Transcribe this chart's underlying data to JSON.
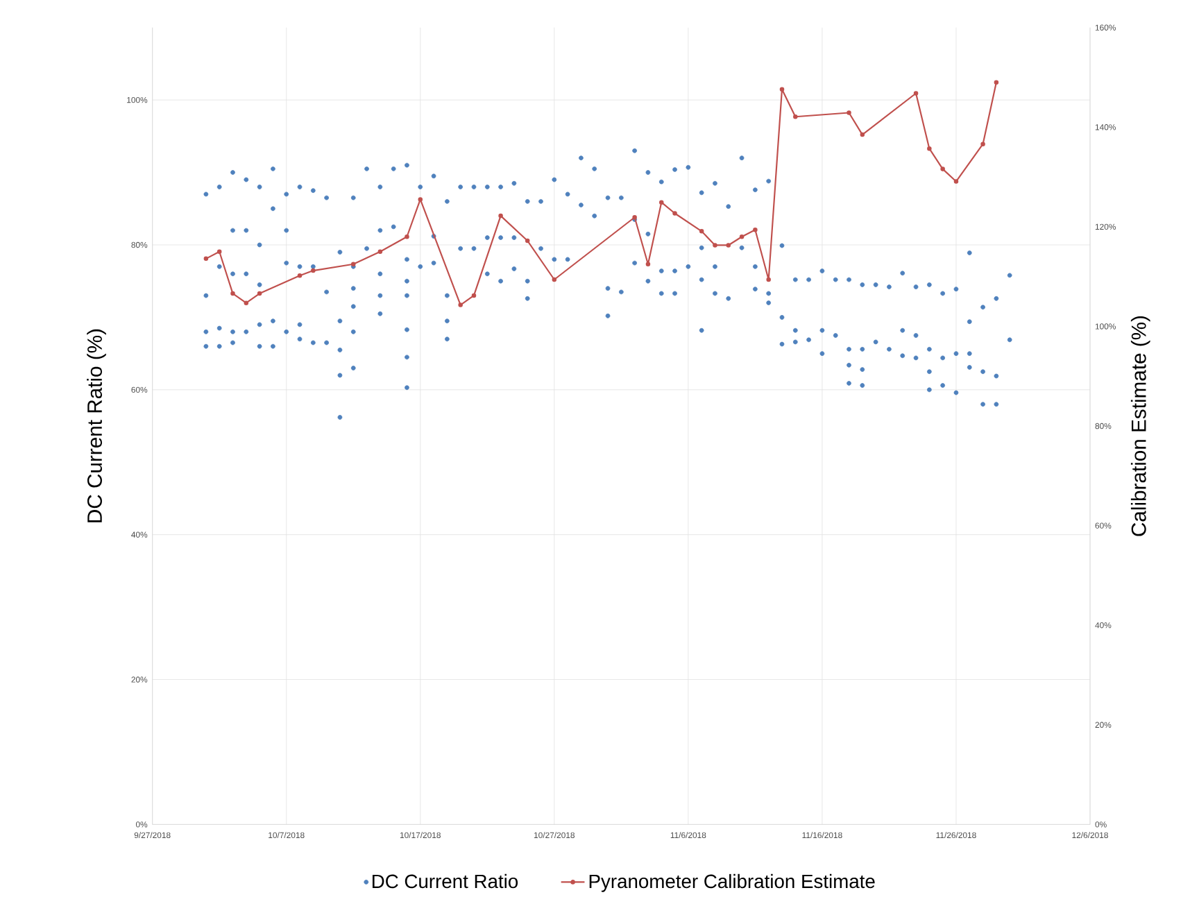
{
  "chart_data": {
    "type": "scatter",
    "ylabel": "DC Current Ratio (%)",
    "y2label": "Calibration Estimate (%)",
    "xlim": [
      "2018-09-27",
      "2018-12-06"
    ],
    "xticks": [
      {
        "value": "2018-09-27",
        "label": "9/27/2018"
      },
      {
        "value": "2018-10-07",
        "label": "10/7/2018"
      },
      {
        "value": "2018-10-17",
        "label": "10/17/2018"
      },
      {
        "value": "2018-10-27",
        "label": "10/27/2018"
      },
      {
        "value": "2018-11-06",
        "label": "11/6/2018"
      },
      {
        "value": "2018-11-16",
        "label": "11/16/2018"
      },
      {
        "value": "2018-11-26",
        "label": "11/26/2018"
      },
      {
        "value": "2018-12-06",
        "label": "12/6/2018"
      }
    ],
    "ylim": [
      0,
      110
    ],
    "yticks": [
      {
        "value": 0,
        "label": "0%"
      },
      {
        "value": 20,
        "label": "20%"
      },
      {
        "value": 40,
        "label": "40%"
      },
      {
        "value": 60,
        "label": "60%"
      },
      {
        "value": 80,
        "label": "80%"
      },
      {
        "value": 100,
        "label": "100%"
      }
    ],
    "y2lim": [
      0,
      160
    ],
    "y2ticks": [
      {
        "value": 0,
        "label": "0%"
      },
      {
        "value": 20,
        "label": "20%"
      },
      {
        "value": 40,
        "label": "40%"
      },
      {
        "value": 60,
        "label": "60%"
      },
      {
        "value": 80,
        "label": "80%"
      },
      {
        "value": 100,
        "label": "100%"
      },
      {
        "value": 120,
        "label": "120%"
      },
      {
        "value": 140,
        "label": "140%"
      },
      {
        "value": 160,
        "label": "160%"
      }
    ],
    "grid": true,
    "legend": "bottom",
    "series": [
      {
        "name": "DC Current Ratio",
        "marker": "circle",
        "color": "#4f81bd",
        "x": [
          "2018-10-01",
          "2018-10-01",
          "2018-10-01",
          "2018-10-01",
          "2018-10-02",
          "2018-10-02",
          "2018-10-02",
          "2018-10-02",
          "2018-10-03",
          "2018-10-03",
          "2018-10-03",
          "2018-10-03",
          "2018-10-03",
          "2018-10-04",
          "2018-10-04",
          "2018-10-04",
          "2018-10-04",
          "2018-10-05",
          "2018-10-05",
          "2018-10-05",
          "2018-10-05",
          "2018-10-05",
          "2018-10-06",
          "2018-10-06",
          "2018-10-06",
          "2018-10-06",
          "2018-10-07",
          "2018-10-07",
          "2018-10-07",
          "2018-10-07",
          "2018-10-08",
          "2018-10-08",
          "2018-10-08",
          "2018-10-08",
          "2018-10-09",
          "2018-10-09",
          "2018-10-09",
          "2018-10-10",
          "2018-10-10",
          "2018-10-10",
          "2018-10-11",
          "2018-10-11",
          "2018-10-11",
          "2018-10-11",
          "2018-10-11",
          "2018-10-12",
          "2018-10-12",
          "2018-10-12",
          "2018-10-12",
          "2018-10-12",
          "2018-10-12",
          "2018-10-13",
          "2018-10-13",
          "2018-10-14",
          "2018-10-14",
          "2018-10-14",
          "2018-10-14",
          "2018-10-14",
          "2018-10-15",
          "2018-10-15",
          "2018-10-16",
          "2018-10-16",
          "2018-10-16",
          "2018-10-16",
          "2018-10-16",
          "2018-10-16",
          "2018-10-16",
          "2018-10-17",
          "2018-10-17",
          "2018-10-18",
          "2018-10-18",
          "2018-10-18",
          "2018-10-19",
          "2018-10-19",
          "2018-10-19",
          "2018-10-19",
          "2018-10-20",
          "2018-10-20",
          "2018-10-21",
          "2018-10-21",
          "2018-10-22",
          "2018-10-22",
          "2018-10-22",
          "2018-10-23",
          "2018-10-23",
          "2018-10-23",
          "2018-10-24",
          "2018-10-24",
          "2018-10-24",
          "2018-10-25",
          "2018-10-25",
          "2018-10-25",
          "2018-10-26",
          "2018-10-26",
          "2018-10-27",
          "2018-10-27",
          "2018-10-28",
          "2018-10-28",
          "2018-10-29",
          "2018-10-29",
          "2018-10-30",
          "2018-10-30",
          "2018-10-31",
          "2018-10-31",
          "2018-10-31",
          "2018-11-01",
          "2018-11-01",
          "2018-11-02",
          "2018-11-02",
          "2018-11-02",
          "2018-11-03",
          "2018-11-03",
          "2018-11-03",
          "2018-11-04",
          "2018-11-04",
          "2018-11-04",
          "2018-11-05",
          "2018-11-05",
          "2018-11-05",
          "2018-11-06",
          "2018-11-06",
          "2018-11-07",
          "2018-11-07",
          "2018-11-07",
          "2018-11-07",
          "2018-11-08",
          "2018-11-08",
          "2018-11-08",
          "2018-11-09",
          "2018-11-09",
          "2018-11-10",
          "2018-11-10",
          "2018-11-11",
          "2018-11-11",
          "2018-11-11",
          "2018-11-12",
          "2018-11-12",
          "2018-11-12",
          "2018-11-13",
          "2018-11-13",
          "2018-11-13",
          "2018-11-14",
          "2018-11-14",
          "2018-11-14",
          "2018-11-15",
          "2018-11-15",
          "2018-11-16",
          "2018-11-16",
          "2018-11-16",
          "2018-11-17",
          "2018-11-17",
          "2018-11-18",
          "2018-11-18",
          "2018-11-18",
          "2018-11-18",
          "2018-11-19",
          "2018-11-19",
          "2018-11-19",
          "2018-11-19",
          "2018-11-20",
          "2018-11-20",
          "2018-11-21",
          "2018-11-21",
          "2018-11-22",
          "2018-11-22",
          "2018-11-22",
          "2018-11-23",
          "2018-11-23",
          "2018-11-23",
          "2018-11-24",
          "2018-11-24",
          "2018-11-24",
          "2018-11-24",
          "2018-11-25",
          "2018-11-25",
          "2018-11-25",
          "2018-11-26",
          "2018-11-26",
          "2018-11-26",
          "2018-11-27",
          "2018-11-27",
          "2018-11-27",
          "2018-11-27",
          "2018-11-28",
          "2018-11-28",
          "2018-11-28",
          "2018-11-29",
          "2018-11-29",
          "2018-11-29",
          "2018-11-30",
          "2018-11-30"
        ],
        "values": [
          87,
          73,
          68,
          66,
          88,
          77,
          68.5,
          66,
          90,
          82,
          76,
          68,
          66.5,
          89,
          82,
          76,
          68,
          88,
          80,
          74.5,
          69,
          66,
          90.5,
          85,
          69.5,
          66,
          87,
          82,
          77.5,
          68,
          88,
          77,
          69,
          67,
          87.5,
          77,
          66.5,
          86.5,
          73.5,
          66.5,
          79,
          69.5,
          65.5,
          62,
          56.2,
          86.5,
          77,
          74,
          71.5,
          68,
          63,
          90.5,
          79.5,
          88,
          82,
          76,
          73,
          70.5,
          90.5,
          82.5,
          91,
          78,
          75,
          73,
          68.3,
          64.5,
          60.3,
          88,
          77,
          89.5,
          81.2,
          77.5,
          86,
          73,
          69.5,
          67,
          88,
          79.5,
          88,
          79.5,
          88,
          81,
          76,
          88,
          81,
          75,
          88.5,
          81,
          76.7,
          86,
          75,
          72.6,
          86,
          79.5,
          89,
          78,
          87,
          78,
          92,
          85.5,
          90.5,
          84,
          86.5,
          74,
          70.2,
          86.5,
          73.5,
          93,
          83.5,
          77.5,
          90,
          81.5,
          75,
          88.7,
          76.4,
          73.3,
          90.4,
          76.4,
          73.3,
          90.7,
          77,
          87.2,
          79.6,
          75.2,
          68.2,
          88.5,
          77,
          73.3,
          85.3,
          72.6,
          92,
          79.6,
          87.6,
          77,
          73.9,
          88.8,
          73.3,
          72,
          79.9,
          70,
          66.3,
          75.2,
          68.2,
          66.6,
          75.2,
          66.9,
          76.4,
          68.2,
          65,
          75.2,
          67.5,
          75.2,
          65.6,
          63.4,
          60.9,
          74.5,
          65.6,
          62.8,
          60.6,
          74.5,
          66.6,
          74.2,
          65.6,
          76.1,
          68.2,
          64.7,
          74.2,
          67.5,
          64.4,
          74.5,
          65.6,
          62.5,
          60,
          73.3,
          64.4,
          60.6,
          73.9,
          65,
          59.6,
          78.9,
          69.4,
          65,
          63.1,
          71.4,
          62.5,
          58,
          72.6,
          61.9,
          58,
          75.8,
          66.9
        ]
      },
      {
        "name": "Pyranometer Calibration Estimate",
        "type": "line",
        "axis": "y2",
        "marker": "circle",
        "line_style": "solid",
        "color": "#c0504d",
        "x": [
          "2018-10-01",
          "2018-10-02",
          "2018-10-03",
          "2018-10-04",
          "2018-10-05",
          "2018-10-08",
          "2018-10-09",
          "2018-10-12",
          "2018-10-14",
          "2018-10-16",
          "2018-10-17",
          "2018-10-20",
          "2018-10-21",
          "2018-10-23",
          "2018-10-25",
          "2018-10-27",
          "2018-11-02",
          "2018-11-03",
          "2018-11-04",
          "2018-11-05",
          "2018-11-07",
          "2018-11-08",
          "2018-11-09",
          "2018-11-10",
          "2018-11-11",
          "2018-11-12",
          "2018-11-13",
          "2018-11-14",
          "2018-11-18",
          "2018-11-19",
          "2018-11-23",
          "2018-11-24",
          "2018-11-25",
          "2018-11-26",
          "2018-11-28",
          "2018-11-29"
        ],
        "values": [
          113.6,
          115,
          106.6,
          104.7,
          106.6,
          110.2,
          111.2,
          112.5,
          115,
          118,
          125.5,
          104.3,
          106.2,
          122.2,
          117.2,
          109.4,
          121.9,
          112.5,
          124.9,
          122.7,
          119.1,
          116.3,
          116.3,
          118,
          119.4,
          109.4,
          147.6,
          142.1,
          142.9,
          138.5,
          146.8,
          135.7,
          131.6,
          129.1,
          136.6,
          149
        ]
      }
    ]
  }
}
